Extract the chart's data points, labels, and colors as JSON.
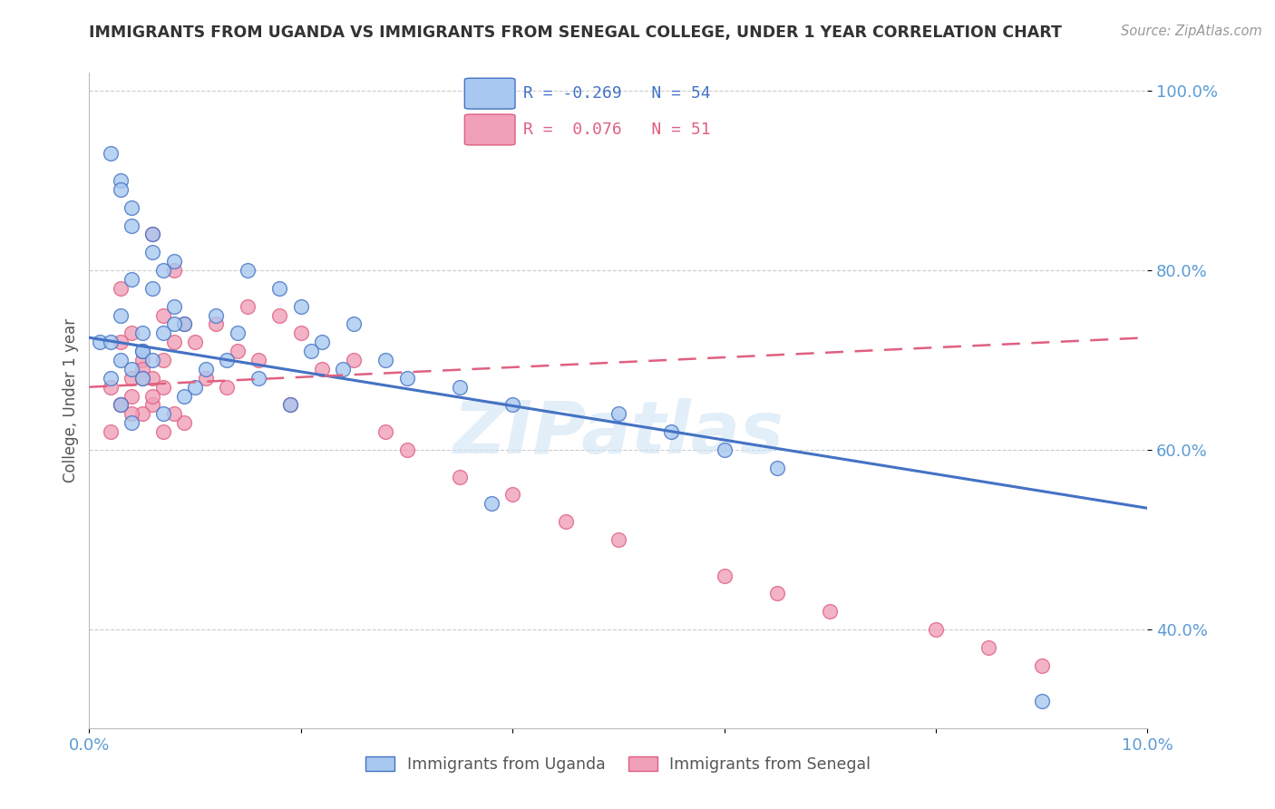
{
  "title": "IMMIGRANTS FROM UGANDA VS IMMIGRANTS FROM SENEGAL COLLEGE, UNDER 1 YEAR CORRELATION CHART",
  "source": "Source: ZipAtlas.com",
  "ylabel": "College, Under 1 year",
  "xlim": [
    0.0,
    0.1
  ],
  "ylim": [
    0.29,
    1.02
  ],
  "yticks": [
    0.4,
    0.6,
    0.8,
    1.0
  ],
  "ytick_labels": [
    "40.0%",
    "60.0%",
    "80.0%",
    "100.0%"
  ],
  "xticks": [
    0.0,
    0.02,
    0.04,
    0.06,
    0.08,
    0.1
  ],
  "xtick_labels": [
    "0.0%",
    "",
    "",
    "",
    "",
    "10.0%"
  ],
  "uganda_R": -0.269,
  "uganda_N": 54,
  "senegal_R": 0.076,
  "senegal_N": 51,
  "uganda_color": "#A8C8F0",
  "senegal_color": "#F0A0B8",
  "uganda_line_color": "#4472C4",
  "senegal_line_color": "#E06080",
  "background_color": "#FFFFFF",
  "grid_color": "#CCCCCC",
  "title_color": "#333333",
  "axis_label_color": "#555555",
  "right_tick_color": "#5B9BD5",
  "bottom_tick_color": "#5B9BD5",
  "watermark_text": "ZIPatlas",
  "watermark_color": "#D0E4F4",
  "legend_box_color": "#AAAAAA",
  "uganda_x": [
    0.005,
    0.003,
    0.004,
    0.008,
    0.006,
    0.004,
    0.007,
    0.005,
    0.003,
    0.002,
    0.001,
    0.006,
    0.008,
    0.009,
    0.003,
    0.005,
    0.007,
    0.004,
    0.002,
    0.006,
    0.008,
    0.01,
    0.003,
    0.005,
    0.009,
    0.007,
    0.004,
    0.015,
    0.018,
    0.02,
    0.012,
    0.014,
    0.013,
    0.016,
    0.011,
    0.019,
    0.022,
    0.025,
    0.021,
    0.024,
    0.03,
    0.028,
    0.035,
    0.04,
    0.038,
    0.05,
    0.055,
    0.06,
    0.065,
    0.09,
    0.002,
    0.003,
    0.004,
    0.006
  ],
  "uganda_y": [
    0.71,
    0.9,
    0.85,
    0.81,
    0.82,
    0.79,
    0.8,
    0.73,
    0.75,
    0.68,
    0.72,
    0.78,
    0.76,
    0.74,
    0.7,
    0.71,
    0.73,
    0.69,
    0.72,
    0.7,
    0.74,
    0.67,
    0.65,
    0.68,
    0.66,
    0.64,
    0.63,
    0.8,
    0.78,
    0.76,
    0.75,
    0.73,
    0.7,
    0.68,
    0.69,
    0.65,
    0.72,
    0.74,
    0.71,
    0.69,
    0.68,
    0.7,
    0.67,
    0.65,
    0.54,
    0.64,
    0.62,
    0.6,
    0.58,
    0.32,
    0.93,
    0.89,
    0.87,
    0.84
  ],
  "senegal_x": [
    0.004,
    0.006,
    0.003,
    0.007,
    0.005,
    0.002,
    0.008,
    0.004,
    0.006,
    0.003,
    0.005,
    0.007,
    0.009,
    0.004,
    0.006,
    0.002,
    0.008,
    0.005,
    0.003,
    0.007,
    0.004,
    0.006,
    0.009,
    0.005,
    0.003,
    0.007,
    0.008,
    0.012,
    0.015,
    0.01,
    0.018,
    0.014,
    0.02,
    0.011,
    0.016,
    0.013,
    0.022,
    0.025,
    0.019,
    0.028,
    0.03,
    0.035,
    0.04,
    0.045,
    0.05,
    0.06,
    0.065,
    0.07,
    0.08,
    0.085,
    0.09
  ],
  "senegal_y": [
    0.73,
    0.84,
    0.78,
    0.75,
    0.7,
    0.67,
    0.8,
    0.68,
    0.65,
    0.72,
    0.64,
    0.7,
    0.63,
    0.66,
    0.68,
    0.62,
    0.72,
    0.69,
    0.65,
    0.67,
    0.64,
    0.66,
    0.74,
    0.68,
    0.65,
    0.62,
    0.64,
    0.74,
    0.76,
    0.72,
    0.75,
    0.71,
    0.73,
    0.68,
    0.7,
    0.67,
    0.69,
    0.7,
    0.65,
    0.62,
    0.6,
    0.57,
    0.55,
    0.52,
    0.5,
    0.46,
    0.44,
    0.42,
    0.4,
    0.38,
    0.36
  ]
}
